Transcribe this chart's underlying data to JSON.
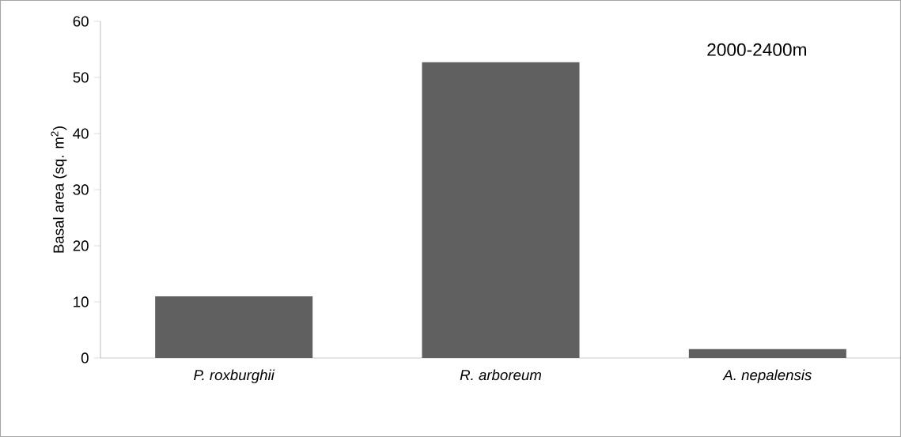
{
  "chart_data": {
    "type": "bar",
    "title": "2000-2400m",
    "ylabel": "Basal area (sq. m$^{2}$)",
    "categories": [
      "P. roxburghii",
      "R. arboreum",
      "A. nepalensis"
    ],
    "values": [
      11.0,
      52.7,
      1.6
    ],
    "color": "#606060",
    "ylim": [
      0,
      60
    ],
    "yticks": [
      0,
      10,
      20,
      30,
      40,
      50,
      60
    ],
    "grid": false
  }
}
